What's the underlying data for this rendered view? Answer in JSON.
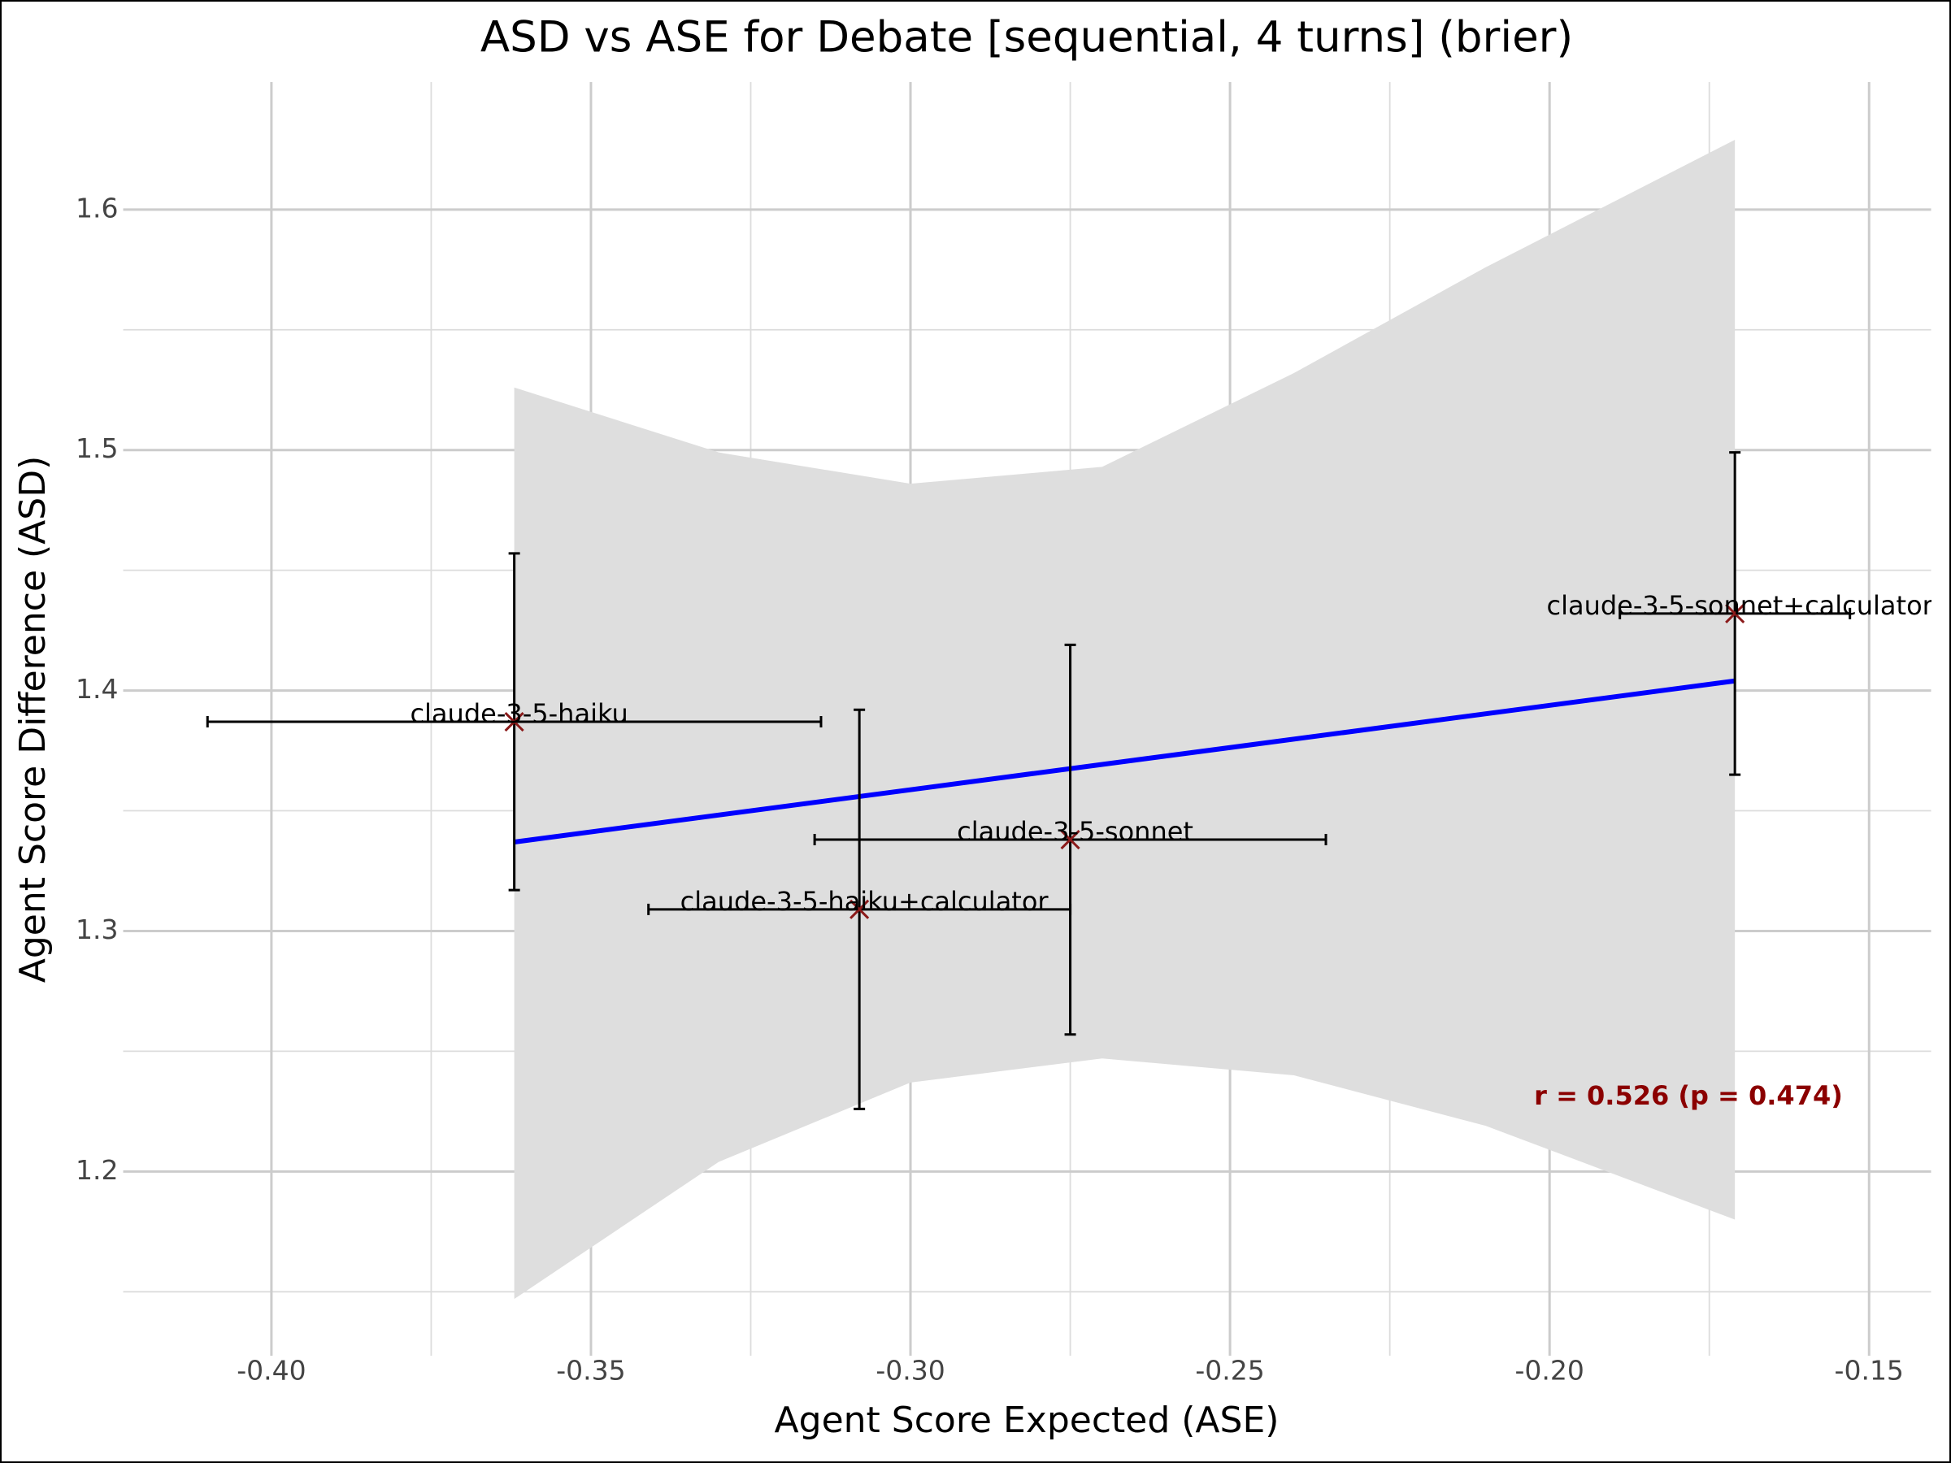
{
  "chart_data": {
    "type": "scatter",
    "title": "ASD vs ASE for Debate [sequential, 4 turns] (brier)",
    "x_label": "Agent Score Expected (ASE)",
    "y_label": "Agent Score Difference (ASD)",
    "annotation": "r = 0.526 (p = 0.474)",
    "labels": [
      "claude-3-5-haiku",
      "claude-3-5-haiku+calculator",
      "claude-3-5-sonnet",
      "claude-3-5-sonnet+calculator"
    ],
    "x": [
      -0.362,
      -0.308,
      -0.275,
      -0.171
    ],
    "values": [
      1.387,
      1.309,
      1.338,
      1.432
    ],
    "xerr": [
      0.048,
      0.033,
      0.04,
      0.018
    ],
    "yerr": [
      0.07,
      0.083,
      0.081,
      0.067
    ],
    "color": "#8b1a1a",
    "fit": {
      "x": [
        -0.362,
        -0.171
      ],
      "y": [
        1.337,
        1.404
      ],
      "color": "#0000ff"
    },
    "band": {
      "x": [
        -0.362,
        -0.33,
        -0.3,
        -0.27,
        -0.24,
        -0.21,
        -0.171
      ],
      "upper": [
        1.526,
        1.499,
        1.486,
        1.493,
        1.532,
        1.576,
        1.629
      ],
      "lower": [
        1.147,
        1.204,
        1.237,
        1.247,
        1.24,
        1.219,
        1.18
      ],
      "color": "#dedede"
    },
    "xlim": [
      -0.4232,
      -0.1403
    ],
    "ylim": [
      1.1234,
      1.653
    ],
    "xticks": [
      {
        "value": -0.4,
        "label": "-0.40"
      },
      -0.35,
      {
        "value": -0.3,
        "label": "-0.30"
      },
      -0.25,
      {
        "value": -0.2,
        "label": "-0.20"
      },
      -0.15
    ],
    "yticks": [
      1.2,
      1.3,
      1.4,
      1.5,
      1.6
    ],
    "xminor": [
      -0.375,
      -0.325,
      -0.275,
      -0.225,
      -0.175
    ],
    "yminor": [
      1.15,
      1.25,
      1.35,
      1.45,
      1.55
    ],
    "grid": true
  }
}
